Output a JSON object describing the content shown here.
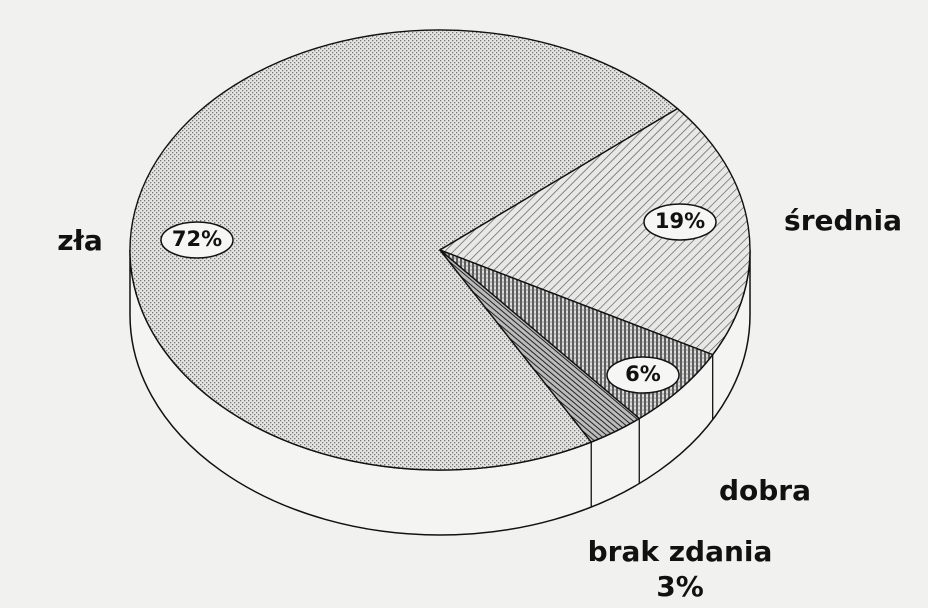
{
  "chart_data": {
    "type": "pie",
    "categories": [
      "zła",
      "średnia",
      "dobra",
      "brak zdania"
    ],
    "values": [
      72,
      19,
      6,
      3
    ],
    "value_labels": [
      "72%",
      "19%",
      "6%",
      "3%"
    ]
  }
}
